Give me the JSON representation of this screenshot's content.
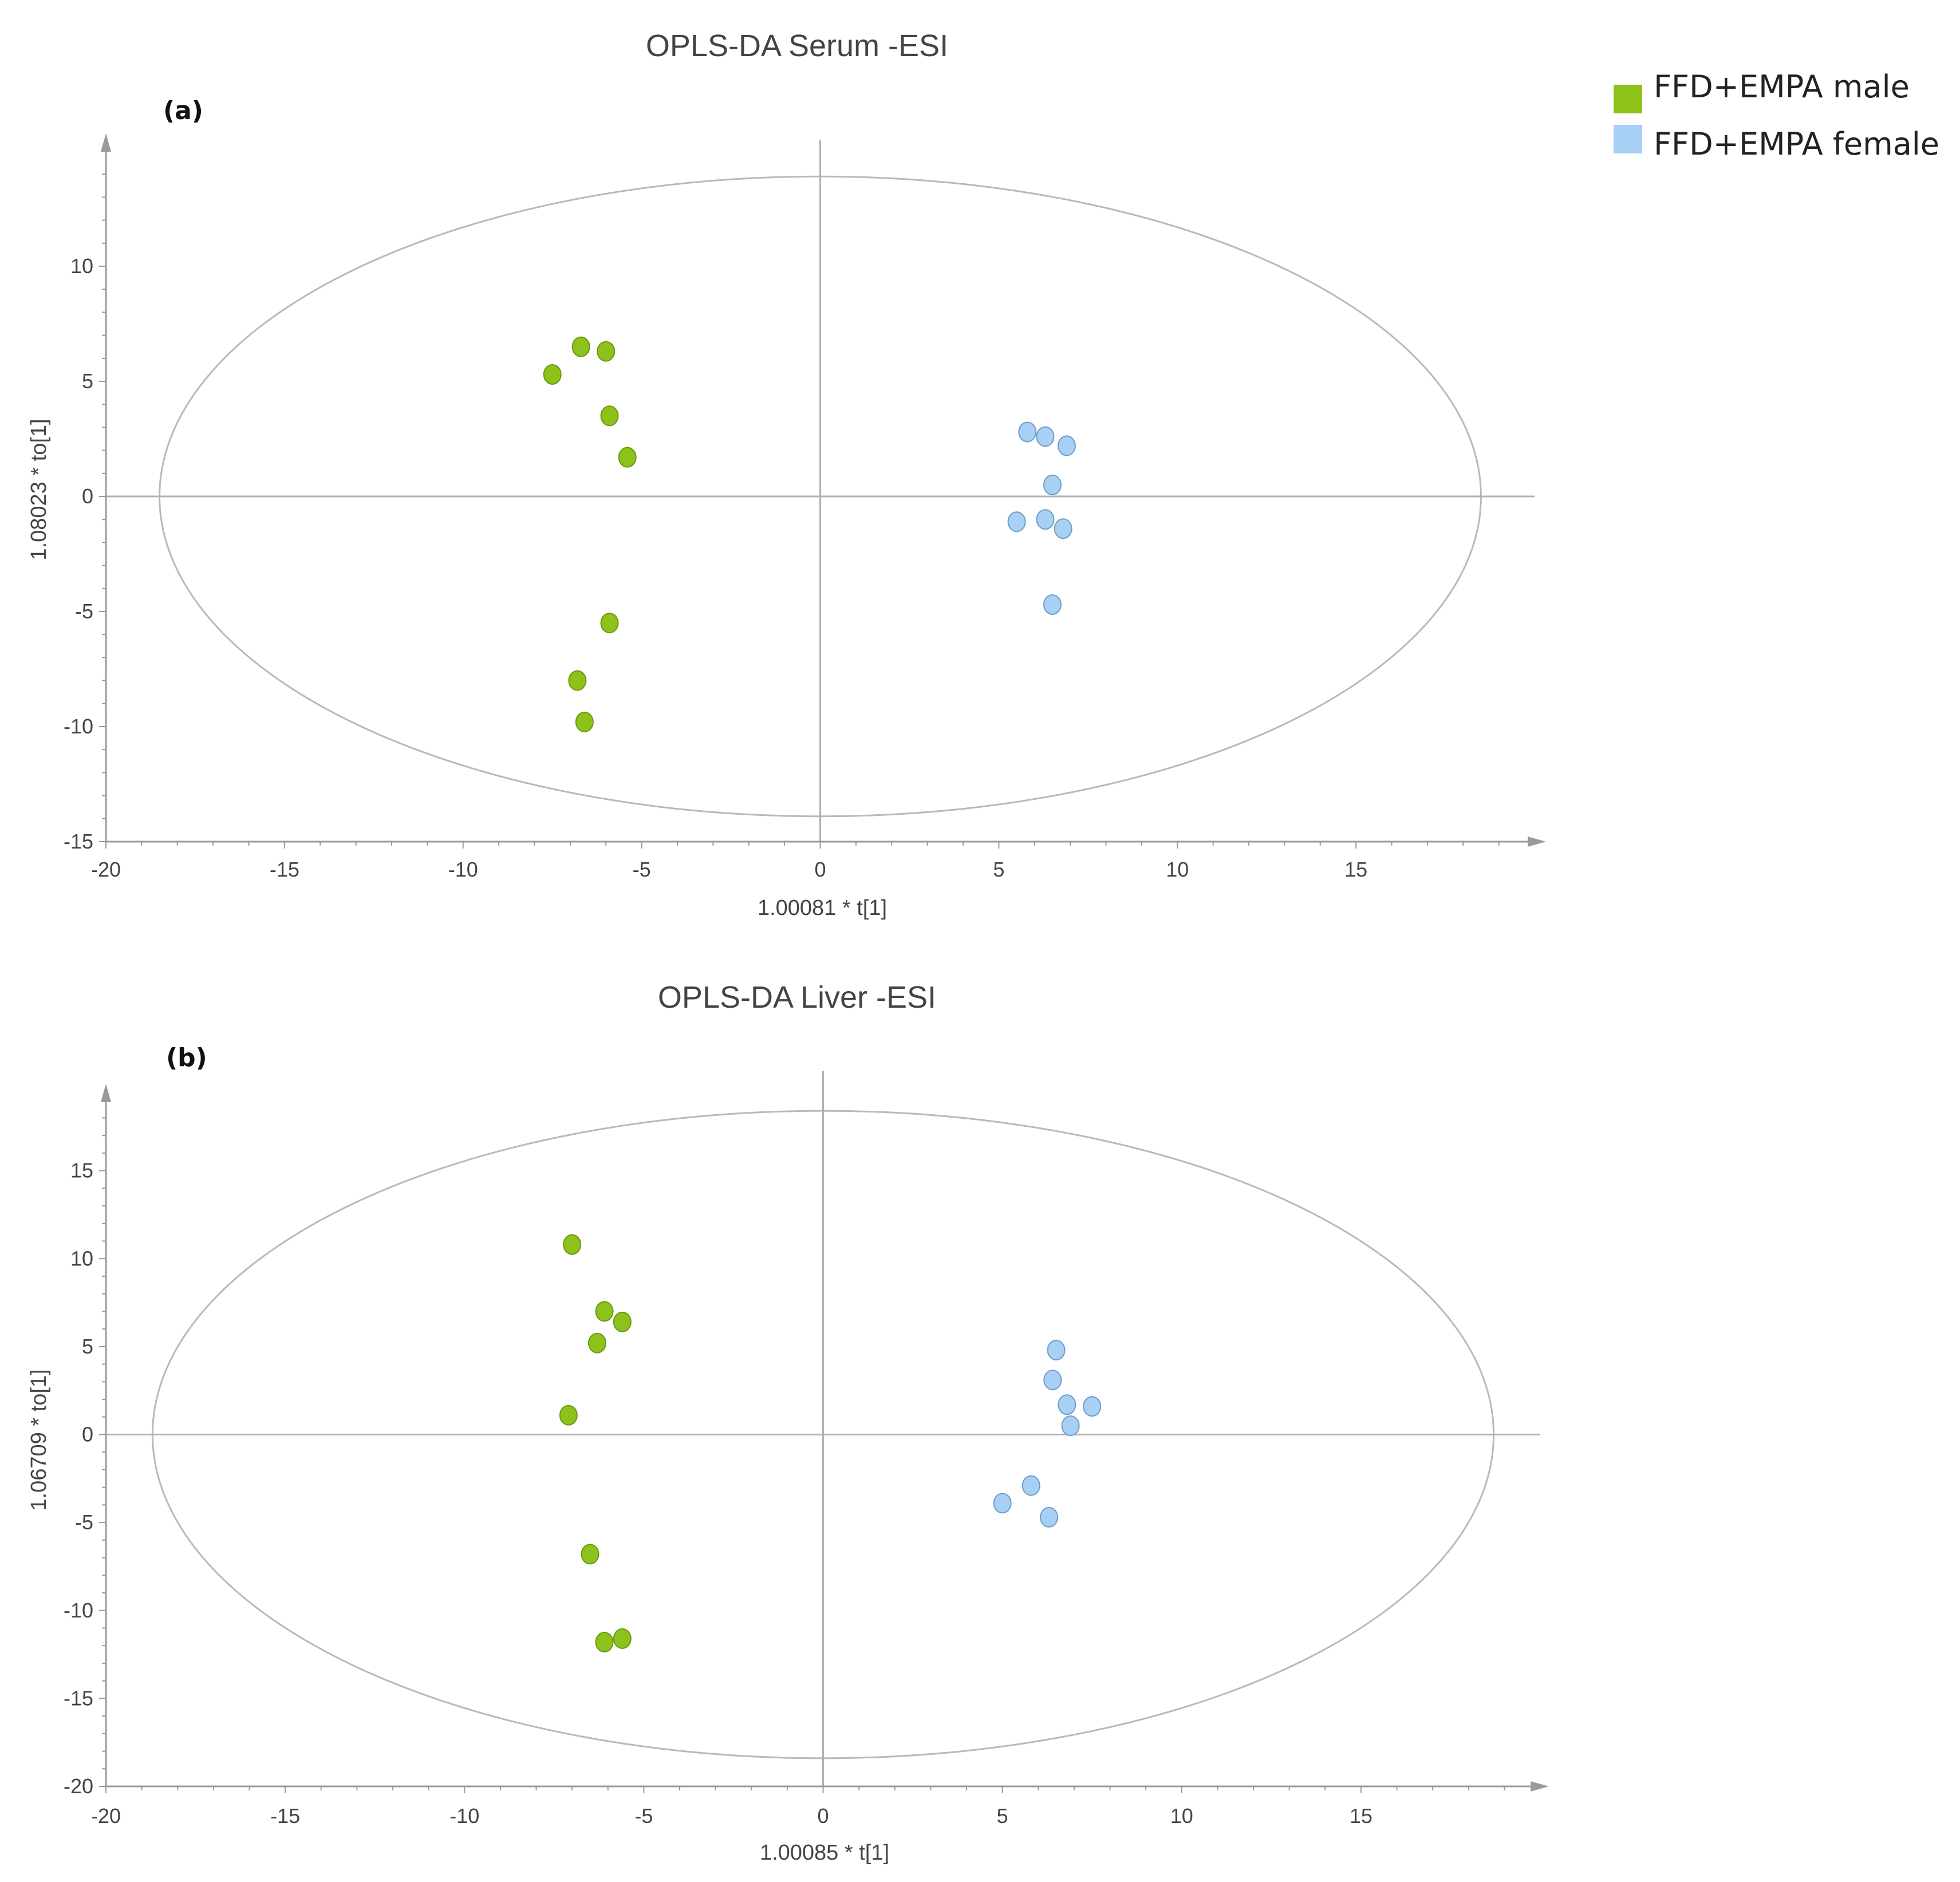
{
  "legend": [
    {
      "label": "FFD+EMPA male",
      "color": "#8cc21a"
    },
    {
      "label": "FFD+EMPA female",
      "color": "#a8d0f5"
    }
  ],
  "chart_data": [
    {
      "type": "scatter",
      "panel_label": "(a)",
      "title": "OPLS-DA Serum -ESI",
      "xlabel": "1.00081 * t[1]",
      "ylabel": "1.08023 * to[1]",
      "xlim": [
        -20,
        20
      ],
      "ylim": [
        -15,
        15
      ],
      "xticks": [
        -20,
        -15,
        -10,
        -5,
        0,
        5,
        10,
        15
      ],
      "yticks": [
        -15,
        -10,
        -5,
        0,
        5,
        10
      ],
      "ellipse": {
        "rx": 18.5,
        "ry": 13.9
      },
      "series": [
        {
          "name": "FFD+EMPA male",
          "color": "#8cc21a",
          "stroke": "#6a9a10",
          "x": [
            -6.7,
            -6.0,
            -7.5,
            -5.9,
            -5.4,
            -5.9,
            -6.8,
            -6.6
          ],
          "y": [
            6.5,
            6.3,
            5.3,
            3.5,
            1.7,
            -5.5,
            -8.0,
            -9.8
          ]
        },
        {
          "name": "FFD+EMPA female",
          "color": "#a8d0f5",
          "stroke": "#6f9cc8",
          "x": [
            5.8,
            6.3,
            6.9,
            6.5,
            5.5,
            6.3,
            6.8,
            6.5
          ],
          "y": [
            2.8,
            2.6,
            2.2,
            0.5,
            -1.1,
            -1.0,
            -1.4,
            -4.7
          ]
        }
      ]
    },
    {
      "type": "scatter",
      "panel_label": "(b)",
      "title": "OPLS-DA Liver -ESI",
      "xlabel": "1.00085 * t[1]",
      "ylabel": "1.06709 * to[1]",
      "xlim": [
        -20,
        20
      ],
      "ylim": [
        -20,
        20
      ],
      "xticks": [
        -20,
        -15,
        -10,
        -5,
        0,
        5,
        10,
        15
      ],
      "yticks": [
        -20,
        -15,
        -10,
        -5,
        0,
        5,
        10,
        15
      ],
      "ellipse": {
        "rx": 18.7,
        "ry": 18.4
      },
      "series": [
        {
          "name": "FFD+EMPA male",
          "color": "#8cc21a",
          "stroke": "#6a9a10",
          "x": [
            -7.0,
            -6.1,
            -5.6,
            -6.3,
            -7.1,
            -6.5,
            -6.1,
            -5.6
          ],
          "y": [
            10.8,
            7.0,
            6.4,
            5.2,
            1.1,
            -6.8,
            -11.8,
            -11.6
          ]
        },
        {
          "name": "FFD+EMPA female",
          "color": "#a8d0f5",
          "stroke": "#6f9cc8",
          "x": [
            6.5,
            6.4,
            6.8,
            7.5,
            6.9,
            5.8,
            5.0,
            6.3
          ],
          "y": [
            4.8,
            3.1,
            1.7,
            1.6,
            0.5,
            -2.9,
            -3.9,
            -4.7
          ]
        }
      ]
    }
  ]
}
